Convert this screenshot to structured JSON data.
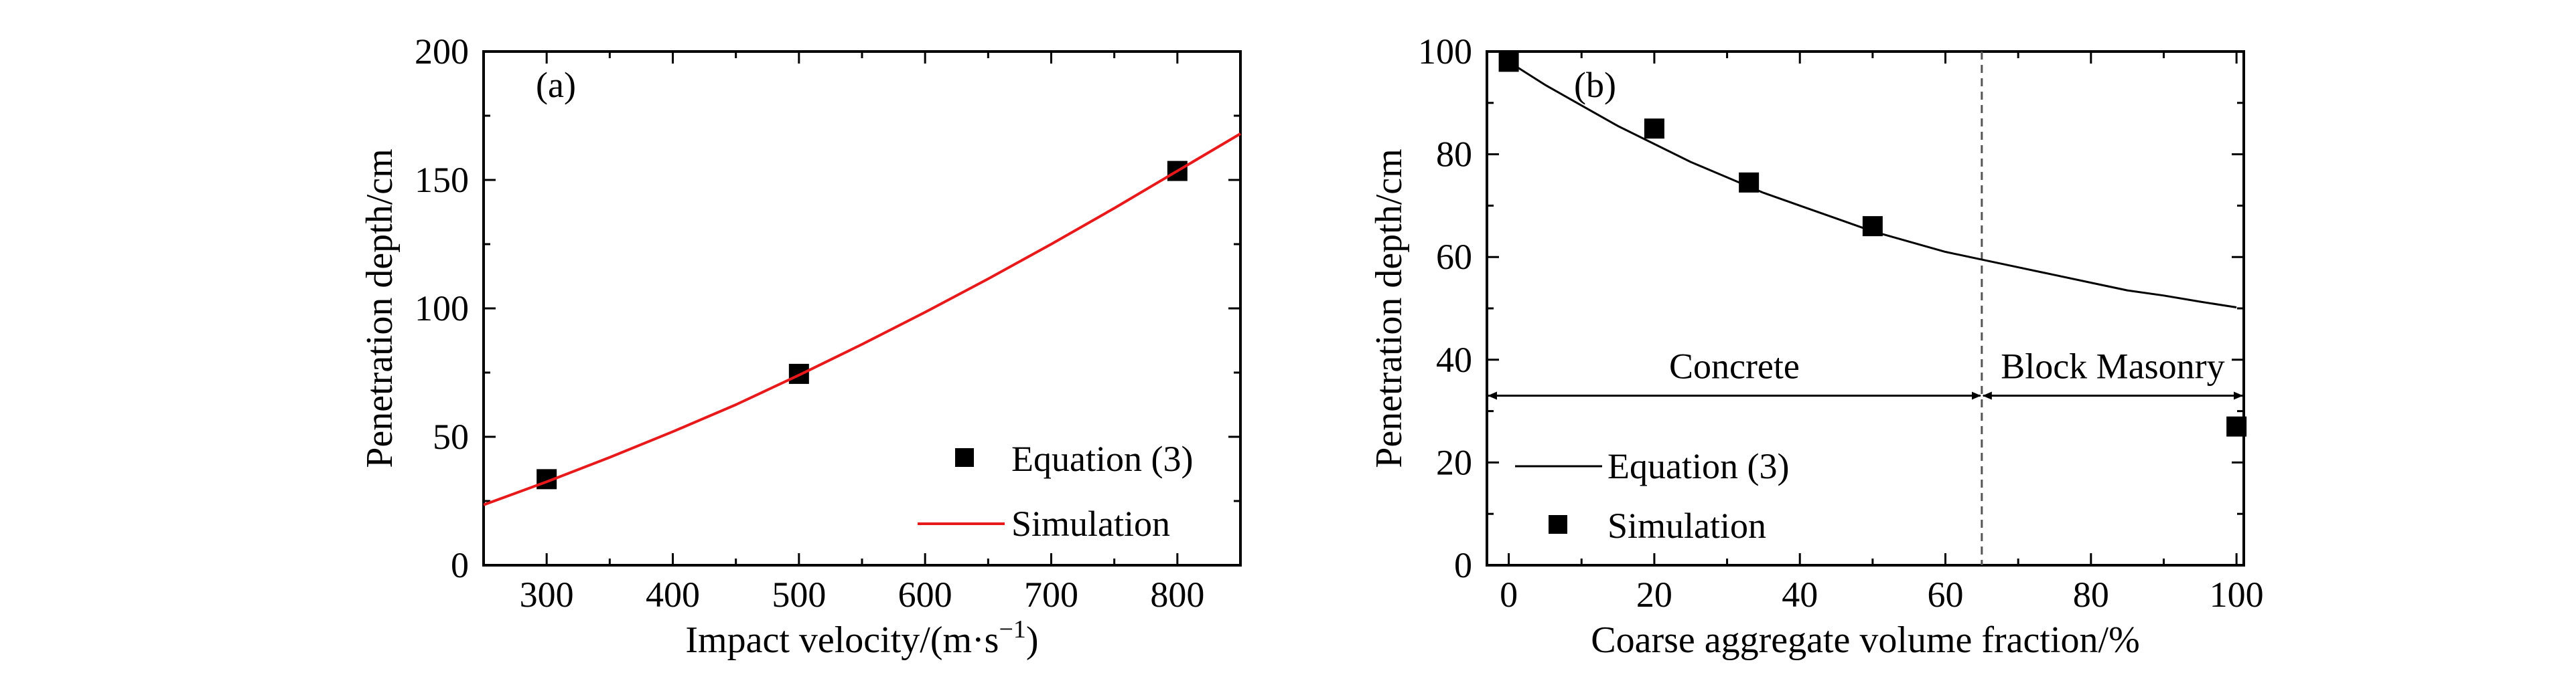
{
  "chart_data": [
    {
      "type": "line",
      "panel_label": "(a)",
      "xlabel": "Impact velocity/(m·s",
      "xlabel_sup": "−1",
      "xlabel_end": ")",
      "ylabel": "Penetration depth/cm",
      "xlim": [
        250,
        850
      ],
      "ylim": [
        0,
        200
      ],
      "xticks": [
        300,
        400,
        500,
        600,
        700,
        800
      ],
      "yticks": [
        0,
        50,
        100,
        150,
        200
      ],
      "legend_position": "bottom-right",
      "series": [
        {
          "name": "Equation (3)",
          "kind": "scatter",
          "marker": "square",
          "color": "#000000",
          "x": [
            300,
            500,
            800
          ],
          "y": [
            33.5,
            74.5,
            153.5
          ]
        },
        {
          "name": "Simulation",
          "kind": "line",
          "color": "#e8191b",
          "x": [
            250,
            300,
            350,
            400,
            450,
            500,
            550,
            600,
            650,
            700,
            750,
            800,
            850
          ],
          "y": [
            23.5,
            32.5,
            42,
            52,
            62.5,
            74,
            86,
            98.5,
            111.5,
            125,
            139,
            153.5,
            168
          ]
        }
      ]
    },
    {
      "type": "line",
      "panel_label": "(b)",
      "xlabel": "Coarse aggregate volume fraction/%",
      "ylabel": "Penetration depth/cm",
      "xlim": [
        -3,
        101
      ],
      "ylim": [
        0,
        100
      ],
      "xticks": [
        0,
        20,
        40,
        60,
        80,
        100
      ],
      "yticks": [
        0,
        20,
        40,
        60,
        80,
        100
      ],
      "legend_position": "bottom-left",
      "divider_x": 65,
      "regions": [
        {
          "label": "Concrete",
          "from": -3,
          "to": 65,
          "y": 33
        },
        {
          "label": "Block Masonry",
          "from": 65,
          "to": 101,
          "y": 33
        }
      ],
      "series": [
        {
          "name": "Equation (3)",
          "kind": "line",
          "color": "#000000",
          "x": [
            0,
            5,
            10,
            15,
            20,
            25,
            30,
            35,
            40,
            45,
            50,
            55,
            60,
            65,
            70,
            75,
            80,
            85,
            90,
            95,
            100
          ],
          "y": [
            98,
            93.5,
            89.5,
            85.5,
            82,
            78.5,
            75.5,
            72.5,
            70,
            67.5,
            65,
            63,
            61,
            59.5,
            58,
            56.5,
            55,
            53.5,
            52.5,
            51.3,
            50.2
          ]
        },
        {
          "name": "Simulation",
          "kind": "scatter",
          "marker": "square",
          "color": "#000000",
          "x": [
            0,
            20,
            33,
            50,
            100
          ],
          "y": [
            98,
            85,
            74.5,
            66,
            27
          ]
        }
      ]
    }
  ]
}
